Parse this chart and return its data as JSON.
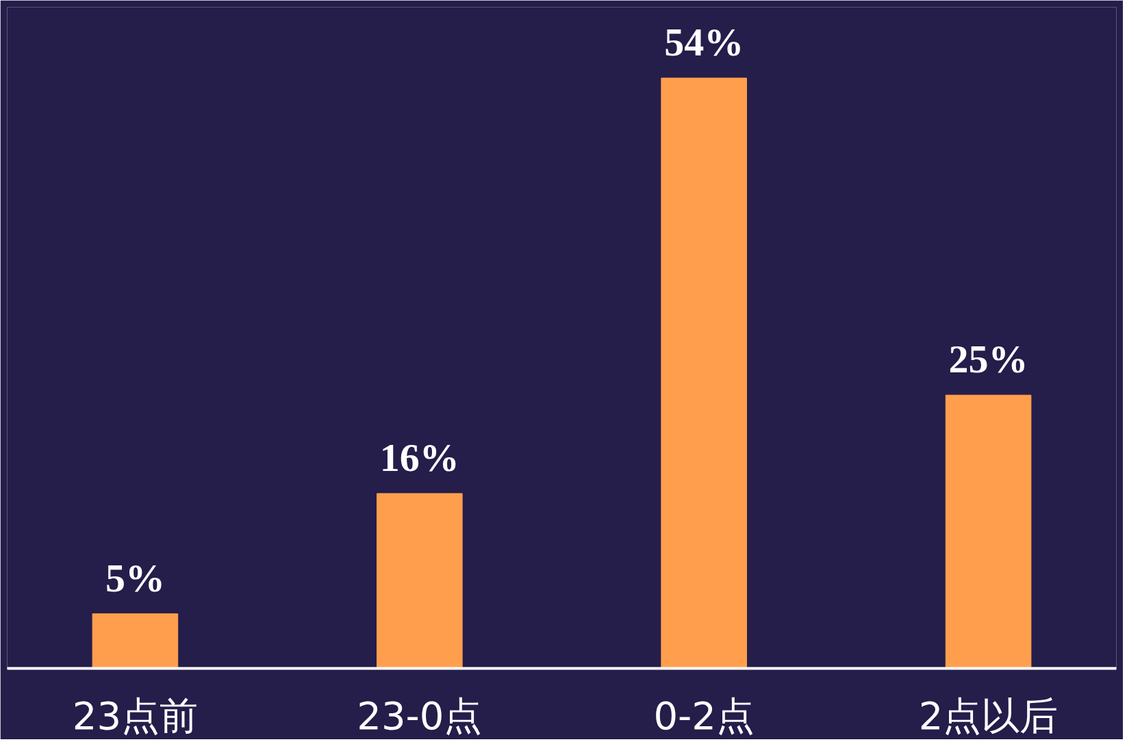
{
  "chart_data": {
    "type": "bar",
    "categories": [
      "23点前",
      "23-0点",
      "0-2点",
      "2点以后"
    ],
    "values": [
      5,
      16,
      54,
      25
    ],
    "value_labels": [
      "5%",
      "16%",
      "54%",
      "25%"
    ],
    "color": "#ff9f4e",
    "grid": false,
    "tick_labels": "x"
  }
}
